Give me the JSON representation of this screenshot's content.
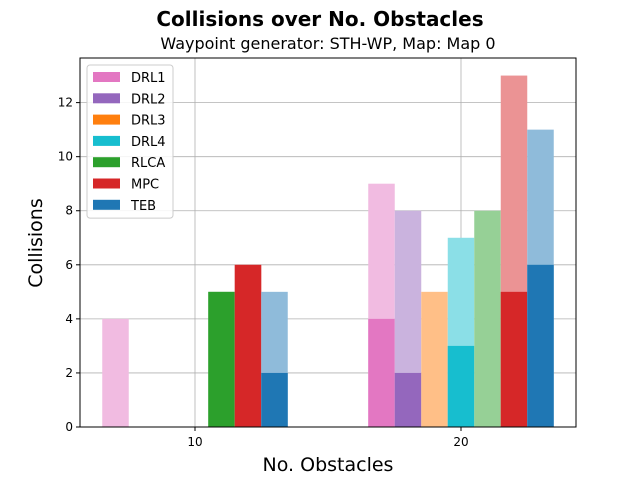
{
  "chart_data": {
    "type": "bar",
    "title": "Collisions over No. Obstacles",
    "subtitle": "Waypoint generator: STH-WP, Map: Map 0",
    "xlabel": "No. Obstacles",
    "ylabel": "Collisions",
    "categories": [
      "10",
      "20"
    ],
    "ylim": [
      0,
      13.65
    ],
    "yticks": [
      0,
      2,
      4,
      6,
      8,
      10,
      12
    ],
    "grid": true,
    "legend_position": "top-left",
    "stacked": true,
    "series": [
      {
        "name": "DRL1",
        "color": "#e377c2",
        "solid": [
          0,
          4
        ],
        "total": [
          4,
          9
        ]
      },
      {
        "name": "DRL2",
        "color": "#9467bd",
        "solid": [
          0,
          2
        ],
        "total": [
          0,
          8
        ]
      },
      {
        "name": "DRL3",
        "color": "#ff7f0e",
        "solid": [
          0,
          0
        ],
        "total": [
          0,
          5
        ]
      },
      {
        "name": "DRL4",
        "color": "#17becf",
        "solid": [
          0,
          3
        ],
        "total": [
          0,
          7
        ]
      },
      {
        "name": "RLCA",
        "color": "#2ca02c",
        "solid": [
          5,
          0
        ],
        "total": [
          5,
          8
        ]
      },
      {
        "name": "MPC",
        "color": "#d62728",
        "solid": [
          6,
          5
        ],
        "total": [
          6,
          13
        ]
      },
      {
        "name": "TEB",
        "color": "#1f77b4",
        "solid": [
          2,
          6
        ],
        "total": [
          5,
          11
        ]
      }
    ]
  }
}
